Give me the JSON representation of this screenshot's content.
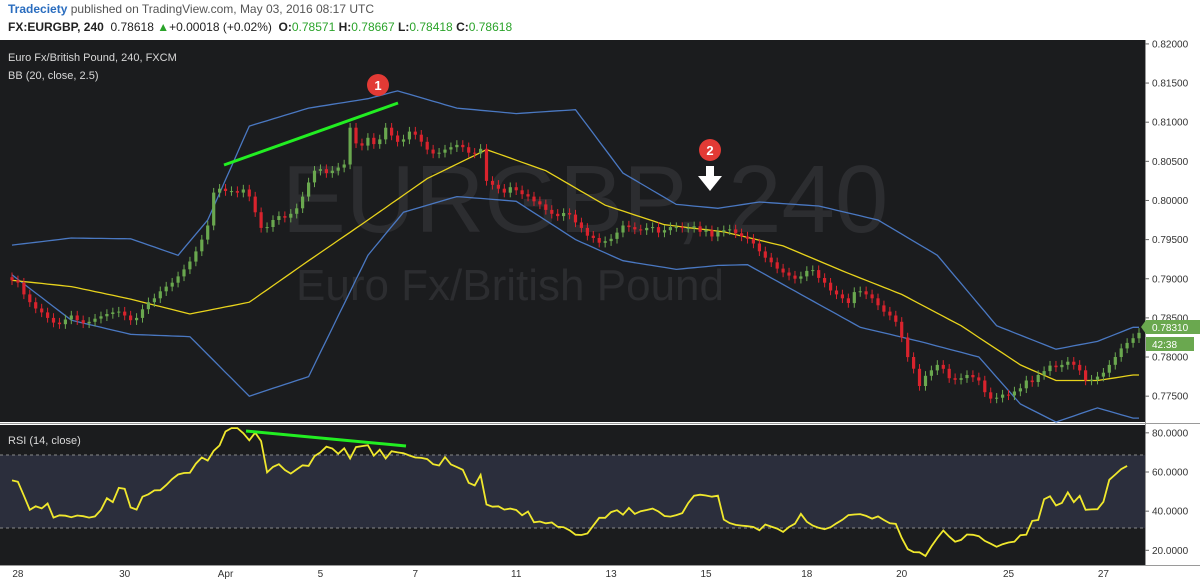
{
  "header": {
    "publisher": "Tradeciety",
    "published_text": "published on TradingView.com, May 03, 2016 08:17 UTC",
    "symbol": "FX:EURGBP, 240",
    "last": "0.78618",
    "change": "+0.00018 (+0.02%)",
    "change_arrow": "▲",
    "ohlc": [
      {
        "label": "O:",
        "value": "0.78571"
      },
      {
        "label": "H:",
        "value": "0.78667"
      },
      {
        "label": "L:",
        "value": "0.78418"
      },
      {
        "label": "C:",
        "value": "0.78618"
      }
    ]
  },
  "overlay": {
    "title": "Euro Fx/British Pound, 240, FXCM",
    "indicator": "BB (20, close, 2.5)",
    "rsi_label": "RSI (14, close)",
    "watermark_symbol": "EURGBP, 240",
    "watermark_name": "Euro Fx/British Pound"
  },
  "price_badge": {
    "value": "0.78310",
    "countdown": "42:38"
  },
  "annotations": [
    {
      "label": "1"
    },
    {
      "label": "2"
    }
  ],
  "colors": {
    "background": "#1b1c1e",
    "up": "#6aa84f",
    "down": "#d9232d",
    "bands": "#4a78c2",
    "basis": "#e8d31c",
    "rsi": "#f0e82d",
    "trendline": "#22ee22",
    "marker": "#e23a35"
  },
  "chart_data": [
    {
      "type": "candlestick",
      "title": "Euro Fx/British Pound, 240, FXCM",
      "x_tick_labels": [
        "28",
        "30",
        "Apr",
        "5",
        "7",
        "11",
        "13",
        "15",
        "18",
        "20",
        "25",
        "27"
      ],
      "y_tick_labels": [
        "0.82000",
        "0.81500",
        "0.81000",
        "0.80500",
        "0.80000",
        "0.79500",
        "0.79000",
        "0.78500",
        "0.78000",
        "0.77500"
      ],
      "ylim": [
        0.7717,
        0.8205
      ],
      "close": [
        0.7898,
        0.7895,
        0.788,
        0.787,
        0.7862,
        0.7857,
        0.785,
        0.7844,
        0.7842,
        0.7848,
        0.7853,
        0.7847,
        0.7843,
        0.7845,
        0.7849,
        0.7852,
        0.7855,
        0.7857,
        0.7858,
        0.7853,
        0.7847,
        0.785,
        0.7861,
        0.787,
        0.7875,
        0.7884,
        0.789,
        0.7895,
        0.7903,
        0.7912,
        0.7922,
        0.7935,
        0.795,
        0.7968,
        0.801,
        0.8015,
        0.8012,
        0.8012,
        0.801,
        0.8014,
        0.8005,
        0.7985,
        0.7965,
        0.7966,
        0.7975,
        0.798,
        0.7978,
        0.7983,
        0.799,
        0.8005,
        0.8023,
        0.8038,
        0.804,
        0.8035,
        0.8038,
        0.8042,
        0.8046,
        0.8093,
        0.8073,
        0.807,
        0.808,
        0.8072,
        0.8078,
        0.8093,
        0.8083,
        0.8075,
        0.8078,
        0.8088,
        0.8084,
        0.8075,
        0.8065,
        0.806,
        0.8061,
        0.8065,
        0.8068,
        0.8071,
        0.8068,
        0.8061,
        0.806,
        0.8066,
        0.8025,
        0.802,
        0.8015,
        0.801,
        0.8017,
        0.8013,
        0.8008,
        0.8005,
        0.7999,
        0.7995,
        0.7988,
        0.7983,
        0.798,
        0.7984,
        0.7982,
        0.7972,
        0.7965,
        0.7955,
        0.7952,
        0.7946,
        0.7948,
        0.7951,
        0.7959,
        0.7968,
        0.7966,
        0.7963,
        0.7962,
        0.7965,
        0.7966,
        0.7959,
        0.7962,
        0.7966,
        0.7966,
        0.7965,
        0.7965,
        0.7967,
        0.796,
        0.7962,
        0.7954,
        0.796,
        0.7962,
        0.7963,
        0.7958,
        0.7954,
        0.7951,
        0.7945,
        0.7935,
        0.7927,
        0.7921,
        0.7913,
        0.7908,
        0.7904,
        0.79,
        0.7903,
        0.791,
        0.7911,
        0.7901,
        0.7895,
        0.7885,
        0.788,
        0.7875,
        0.7869,
        0.7883,
        0.7884,
        0.788,
        0.7875,
        0.7866,
        0.7858,
        0.7853,
        0.7845,
        0.7825,
        0.78,
        0.7785,
        0.7763,
        0.7776,
        0.7783,
        0.779,
        0.7785,
        0.7773,
        0.7771,
        0.7773,
        0.7777,
        0.7774,
        0.777,
        0.7755,
        0.7747,
        0.7748,
        0.7752,
        0.7751,
        0.7756,
        0.776,
        0.777,
        0.7768,
        0.7777,
        0.7782,
        0.7789,
        0.7787,
        0.779,
        0.7794,
        0.779,
        0.7783,
        0.777,
        0.7771,
        0.7775,
        0.778,
        0.779,
        0.78,
        0.7811,
        0.7818,
        0.7824,
        0.7831
      ],
      "bb_upper_anchor": [
        [
          0,
          0.7943
        ],
        [
          10,
          0.7952
        ],
        [
          20,
          0.7951
        ],
        [
          28,
          0.793
        ],
        [
          33,
          0.7975
        ],
        [
          40,
          0.8095
        ],
        [
          50,
          0.8118
        ],
        [
          60,
          0.813
        ],
        [
          65,
          0.814
        ],
        [
          75,
          0.8118
        ],
        [
          85,
          0.8111
        ],
        [
          95,
          0.8116
        ],
        [
          103,
          0.8035
        ],
        [
          112,
          0.7995
        ],
        [
          119,
          0.799
        ],
        [
          126,
          0.7998
        ],
        [
          136,
          0.7993
        ],
        [
          146,
          0.7975
        ],
        [
          156,
          0.793
        ],
        [
          166,
          0.784
        ],
        [
          176,
          0.781
        ],
        [
          183,
          0.782
        ],
        [
          189,
          0.7838
        ]
      ],
      "bb_lower_anchor": [
        [
          0,
          0.7905
        ],
        [
          10,
          0.7847
        ],
        [
          20,
          0.7829
        ],
        [
          30,
          0.7826
        ],
        [
          40,
          0.775
        ],
        [
          50,
          0.7775
        ],
        [
          60,
          0.793
        ],
        [
          66,
          0.7985
        ],
        [
          75,
          0.8005
        ],
        [
          85,
          0.7999
        ],
        [
          95,
          0.795
        ],
        [
          103,
          0.7923
        ],
        [
          112,
          0.7912
        ],
        [
          119,
          0.7917
        ],
        [
          124,
          0.7918
        ],
        [
          133,
          0.788
        ],
        [
          143,
          0.7838
        ],
        [
          153,
          0.782
        ],
        [
          163,
          0.78
        ],
        [
          170,
          0.774
        ],
        [
          176,
          0.7717
        ],
        [
          183,
          0.7735
        ],
        [
          189,
          0.7722
        ]
      ],
      "bb_basis_anchor": [
        [
          0,
          0.7898
        ],
        [
          10,
          0.789
        ],
        [
          20,
          0.7874
        ],
        [
          30,
          0.7855
        ],
        [
          40,
          0.787
        ],
        [
          50,
          0.7923
        ],
        [
          60,
          0.7975
        ],
        [
          70,
          0.8028
        ],
        [
          80,
          0.8065
        ],
        [
          90,
          0.8038
        ],
        [
          100,
          0.7994
        ],
        [
          110,
          0.7969
        ],
        [
          120,
          0.796
        ],
        [
          130,
          0.7942
        ],
        [
          140,
          0.791
        ],
        [
          150,
          0.788
        ],
        [
          160,
          0.784
        ],
        [
          170,
          0.779
        ],
        [
          176,
          0.777
        ],
        [
          183,
          0.777
        ],
        [
          189,
          0.7777
        ]
      ]
    },
    {
      "type": "line",
      "title": "RSI (14, close)",
      "y_tick_labels": [
        "80.0000",
        "60.0000",
        "40.0000",
        "20.0000"
      ],
      "ylim": [
        12.5,
        84
      ],
      "band": [
        30,
        70
      ],
      "series": [
        {
          "values": [
            55.7,
            55.0,
            47.9,
            40.7,
            42.5,
            41.4,
            43.9,
            36.7,
            37.9,
            37.7,
            36.9,
            37.8,
            37.4,
            36.7,
            37.3,
            40.7,
            46.6,
            44.6,
            51.9,
            51.4,
            41.9,
            40.8,
            47.4,
            48.6,
            50.6,
            50.7,
            53.3,
            56.4,
            58.7,
            59.5,
            59.6,
            64.3,
            67.4,
            65.8,
            70.8,
            73.6,
            80.7,
            82.4,
            82.4,
            79.8,
            76.2,
            80.1,
            75.8,
            59.8,
            62.6,
            64.0,
            61.0,
            59.2,
            61.3,
            63.4,
            63.1,
            68.1,
            70.0,
            72.9,
            72.0,
            69.3,
            72.1,
            66.9,
            72.7,
            73.2,
            73.7,
            68.3,
            71.4,
            66.9,
            70.6,
            70.0,
            69.6,
            68.4,
            67.4,
            67.2,
            66.6,
            64.0,
            63.3,
            67.6,
            63.9,
            62.5,
            61.1,
            54.5,
            53.1,
            58.5,
            43.4,
            42.3,
            42.5,
            40.8,
            41.3,
            40.6,
            37.9,
            39.8,
            34.3,
            34.7,
            33.8,
            34.2,
            32.0,
            31.8,
            30.2,
            28.0,
            27.8,
            28.6,
            32.6,
            36.6,
            36.6,
            39.5,
            40.5,
            38.2,
            41.6,
            38.6,
            40.0,
            40.6,
            41.3,
            39.8,
            37.5,
            37.2,
            38.0,
            39.0,
            44.1,
            47.9,
            48.4,
            48.0,
            47.4,
            47.9,
            35.7,
            33.9,
            33.0,
            32.6,
            32.3,
            31.9,
            30.2,
            33.2,
            32.1,
            31.1,
            29.4,
            31.9,
            33.6,
            38.6,
            34.6,
            32.6,
            31.5,
            30.8,
            31.8,
            33.8,
            35.6,
            38.0,
            38.3,
            38.5,
            37.6,
            36.2,
            37.3,
            35.5,
            33.8,
            33.5,
            26.4,
            20.6,
            19.1,
            19.0,
            17.1,
            22.0,
            26.3,
            30.1,
            27.0,
            24.4,
            25.3,
            28.1,
            27.9,
            27.2,
            24.8,
            23.4,
            21.8,
            23.1,
            24.0,
            24.4,
            27.7,
            28.0,
            35.0,
            35.5,
            46.1,
            47.6,
            42.9,
            44.2,
            49.6,
            44.6,
            47.8,
            40.7,
            40.9,
            41.0,
            44.8,
            56.0,
            58.7,
            61.5,
            63.1
          ]
        }
      ]
    }
  ]
}
